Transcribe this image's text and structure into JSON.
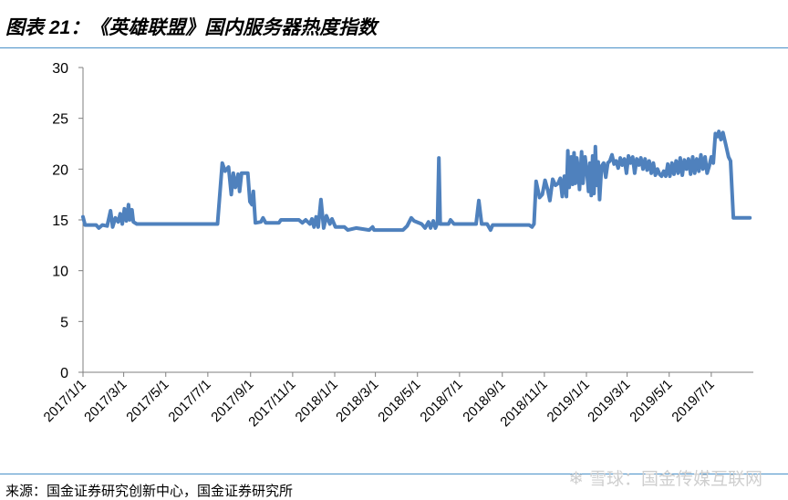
{
  "header": {
    "title": "图表 21：《英雄联盟》国内服务器热度指数"
  },
  "footer": {
    "source": "来源：国金证券研究创新中心，国金证券研究所",
    "watermark": "雪球：国金传媒互联网"
  },
  "chart_data": {
    "type": "line",
    "title": "",
    "xlabel": "",
    "ylabel": "",
    "ylim": [
      0,
      30
    ],
    "yticks": [
      "0",
      "5",
      "10",
      "15",
      "20",
      "25",
      "30"
    ],
    "xticks": [
      "2017/1/1",
      "2017/3/1",
      "2017/5/1",
      "2017/7/1",
      "2017/9/1",
      "2017/11/1",
      "2018/1/1",
      "2018/3/1",
      "2018/5/1",
      "2018/7/1",
      "2018/9/1",
      "2018/11/1",
      "2019/1/1",
      "2019/3/1",
      "2019/5/1",
      "2019/7/1"
    ],
    "grid": false,
    "legend": "none",
    "series_color": "#4f81bd",
    "series": [
      {
        "values": [
          [
            "2017-01-01",
            15.3
          ],
          [
            "2017-01-04",
            14.5
          ],
          [
            "2017-01-20",
            14.5
          ],
          [
            "2017-01-24",
            14.2
          ],
          [
            "2017-01-29",
            14.5
          ],
          [
            "2017-02-05",
            14.4
          ],
          [
            "2017-02-10",
            15.9
          ],
          [
            "2017-02-13",
            14.3
          ],
          [
            "2017-02-17",
            15.2
          ],
          [
            "2017-02-21",
            14.8
          ],
          [
            "2017-02-24",
            15.6
          ],
          [
            "2017-02-27",
            14.6
          ],
          [
            "2017-03-02",
            16.1
          ],
          [
            "2017-03-05",
            14.9
          ],
          [
            "2017-03-08",
            16.5
          ],
          [
            "2017-03-10",
            15.0
          ],
          [
            "2017-03-13",
            16.0
          ],
          [
            "2017-03-15",
            14.8
          ],
          [
            "2017-03-20",
            14.6
          ],
          [
            "2017-07-15",
            14.6
          ],
          [
            "2017-07-22",
            20.6
          ],
          [
            "2017-07-26",
            19.8
          ],
          [
            "2017-07-31",
            20.2
          ],
          [
            "2017-08-04",
            17.5
          ],
          [
            "2017-08-07",
            19.6
          ],
          [
            "2017-08-10",
            18.2
          ],
          [
            "2017-08-14",
            19.5
          ],
          [
            "2017-08-16",
            17.8
          ],
          [
            "2017-08-19",
            19.6
          ],
          [
            "2017-08-28",
            19.6
          ],
          [
            "2017-08-31",
            16.8
          ],
          [
            "2017-09-03",
            16.5
          ],
          [
            "2017-09-05",
            17.8
          ],
          [
            "2017-09-08",
            14.7
          ],
          [
            "2017-09-16",
            14.8
          ],
          [
            "2017-09-19",
            15.2
          ],
          [
            "2017-09-23",
            14.7
          ],
          [
            "2017-10-12",
            14.7
          ],
          [
            "2017-10-15",
            15.0
          ],
          [
            "2017-11-10",
            15.0
          ],
          [
            "2017-11-15",
            14.7
          ],
          [
            "2017-11-20",
            15.0
          ],
          [
            "2017-11-26",
            14.6
          ],
          [
            "2017-11-29",
            15.1
          ],
          [
            "2017-12-02",
            14.3
          ],
          [
            "2017-12-05",
            15.3
          ],
          [
            "2017-12-08",
            14.3
          ],
          [
            "2017-12-12",
            17.0
          ],
          [
            "2017-12-16",
            14.2
          ],
          [
            "2017-12-20",
            15.4
          ],
          [
            "2017-12-25",
            14.6
          ],
          [
            "2017-12-28",
            15.1
          ],
          [
            "2018-01-02",
            14.3
          ],
          [
            "2018-01-15",
            14.3
          ],
          [
            "2018-01-20",
            14.0
          ],
          [
            "2018-02-01",
            14.2
          ],
          [
            "2018-02-20",
            14.0
          ],
          [
            "2018-02-25",
            14.3
          ],
          [
            "2018-02-27",
            14.0
          ],
          [
            "2018-04-10",
            14.0
          ],
          [
            "2018-04-16",
            14.4
          ],
          [
            "2018-04-22",
            15.2
          ],
          [
            "2018-04-26",
            14.9
          ],
          [
            "2018-05-07",
            14.6
          ],
          [
            "2018-05-12",
            14.2
          ],
          [
            "2018-05-17",
            14.8
          ],
          [
            "2018-05-20",
            14.2
          ],
          [
            "2018-05-24",
            14.9
          ],
          [
            "2018-05-27",
            14.2
          ],
          [
            "2018-05-30",
            14.7
          ],
          [
            "2018-06-01",
            21.1
          ],
          [
            "2018-06-03",
            14.6
          ],
          [
            "2018-06-15",
            14.6
          ],
          [
            "2018-06-18",
            15.0
          ],
          [
            "2018-06-23",
            14.6
          ],
          [
            "2018-07-25",
            14.6
          ],
          [
            "2018-07-29",
            16.9
          ],
          [
            "2018-08-02",
            14.6
          ],
          [
            "2018-08-10",
            14.6
          ],
          [
            "2018-08-15",
            14.0
          ],
          [
            "2018-08-18",
            14.5
          ],
          [
            "2018-09-01",
            14.5
          ],
          [
            "2018-10-10",
            14.5
          ],
          [
            "2018-10-14",
            14.3
          ],
          [
            "2018-10-17",
            14.6
          ],
          [
            "2018-10-20",
            18.8
          ],
          [
            "2018-10-25",
            17.2
          ],
          [
            "2018-10-29",
            17.5
          ],
          [
            "2018-11-02",
            18.9
          ],
          [
            "2018-11-06",
            17.9
          ],
          [
            "2018-11-09",
            16.9
          ],
          [
            "2018-11-13",
            19.0
          ],
          [
            "2018-11-17",
            18.4
          ],
          [
            "2018-11-21",
            18.6
          ],
          [
            "2018-11-24",
            19.1
          ],
          [
            "2018-11-27",
            17.3
          ],
          [
            "2018-11-30",
            19.3
          ],
          [
            "2018-12-03",
            17.3
          ],
          [
            "2018-12-05",
            21.8
          ],
          [
            "2018-12-07",
            18.2
          ],
          [
            "2018-12-10",
            21.2
          ],
          [
            "2018-12-12",
            18.5
          ],
          [
            "2018-12-14",
            21.6
          ],
          [
            "2018-12-16",
            18.6
          ],
          [
            "2018-12-18",
            21.1
          ],
          [
            "2018-12-20",
            20.0
          ],
          [
            "2018-12-22",
            18.0
          ],
          [
            "2018-12-25",
            21.7
          ],
          [
            "2018-12-27",
            18.6
          ],
          [
            "2018-12-30",
            21.2
          ],
          [
            "2019-01-02",
            19.4
          ],
          [
            "2019-01-04",
            17.8
          ],
          [
            "2019-01-06",
            20.6
          ],
          [
            "2019-01-08",
            17.4
          ],
          [
            "2019-01-10",
            21.3
          ],
          [
            "2019-01-12",
            17.6
          ],
          [
            "2019-01-14",
            22.2
          ],
          [
            "2019-01-16",
            18.4
          ],
          [
            "2019-01-18",
            20.7
          ],
          [
            "2019-01-20",
            17.0
          ],
          [
            "2019-01-23",
            20.3
          ],
          [
            "2019-01-26",
            20.6
          ],
          [
            "2019-01-29",
            19.2
          ],
          [
            "2019-02-01",
            20.6
          ],
          [
            "2019-02-04",
            20.8
          ],
          [
            "2019-02-07",
            21.4
          ],
          [
            "2019-02-10",
            20.5
          ],
          [
            "2019-02-13",
            20.8
          ],
          [
            "2019-02-16",
            20.1
          ],
          [
            "2019-02-19",
            21.1
          ],
          [
            "2019-02-22",
            20.4
          ],
          [
            "2019-02-25",
            21.0
          ],
          [
            "2019-02-28",
            19.6
          ],
          [
            "2019-03-03",
            21.3
          ],
          [
            "2019-03-06",
            20.6
          ],
          [
            "2019-03-09",
            21.2
          ],
          [
            "2019-03-12",
            19.6
          ],
          [
            "2019-03-15",
            21.0
          ],
          [
            "2019-03-18",
            20.4
          ],
          [
            "2019-03-21",
            21.1
          ],
          [
            "2019-03-24",
            20.0
          ],
          [
            "2019-03-27",
            21.0
          ],
          [
            "2019-03-30",
            19.9
          ],
          [
            "2019-04-02",
            20.8
          ],
          [
            "2019-04-05",
            19.6
          ],
          [
            "2019-04-08",
            20.6
          ],
          [
            "2019-04-11",
            19.4
          ],
          [
            "2019-04-14",
            20.0
          ],
          [
            "2019-04-17",
            19.5
          ],
          [
            "2019-04-20",
            19.3
          ],
          [
            "2019-04-23",
            19.8
          ],
          [
            "2019-04-26",
            19.3
          ],
          [
            "2019-04-29",
            20.5
          ],
          [
            "2019-05-02",
            19.3
          ],
          [
            "2019-05-05",
            20.6
          ],
          [
            "2019-05-08",
            19.5
          ],
          [
            "2019-05-11",
            20.8
          ],
          [
            "2019-05-14",
            19.6
          ],
          [
            "2019-05-17",
            21.1
          ],
          [
            "2019-05-20",
            19.4
          ],
          [
            "2019-05-23",
            20.9
          ],
          [
            "2019-05-26",
            20.0
          ],
          [
            "2019-05-29",
            21.0
          ],
          [
            "2019-06-01",
            19.5
          ],
          [
            "2019-06-04",
            21.2
          ],
          [
            "2019-06-07",
            19.6
          ],
          [
            "2019-06-10",
            21.0
          ],
          [
            "2019-06-13",
            19.8
          ],
          [
            "2019-06-16",
            21.4
          ],
          [
            "2019-06-19",
            20.0
          ],
          [
            "2019-06-22",
            21.2
          ],
          [
            "2019-06-25",
            19.6
          ],
          [
            "2019-06-28",
            20.3
          ],
          [
            "2019-07-01",
            21.2
          ],
          [
            "2019-07-04",
            20.6
          ],
          [
            "2019-07-07",
            23.5
          ],
          [
            "2019-07-10",
            23.2
          ],
          [
            "2019-07-12",
            23.7
          ],
          [
            "2019-07-15",
            22.9
          ],
          [
            "2019-07-18",
            23.6
          ],
          [
            "2019-07-22",
            22.4
          ],
          [
            "2019-07-26",
            21.2
          ],
          [
            "2019-07-29",
            20.8
          ],
          [
            "2019-08-02",
            15.2
          ],
          [
            "2019-08-10",
            15.2
          ],
          [
            "2019-08-26",
            15.2
          ]
        ]
      }
    ]
  }
}
